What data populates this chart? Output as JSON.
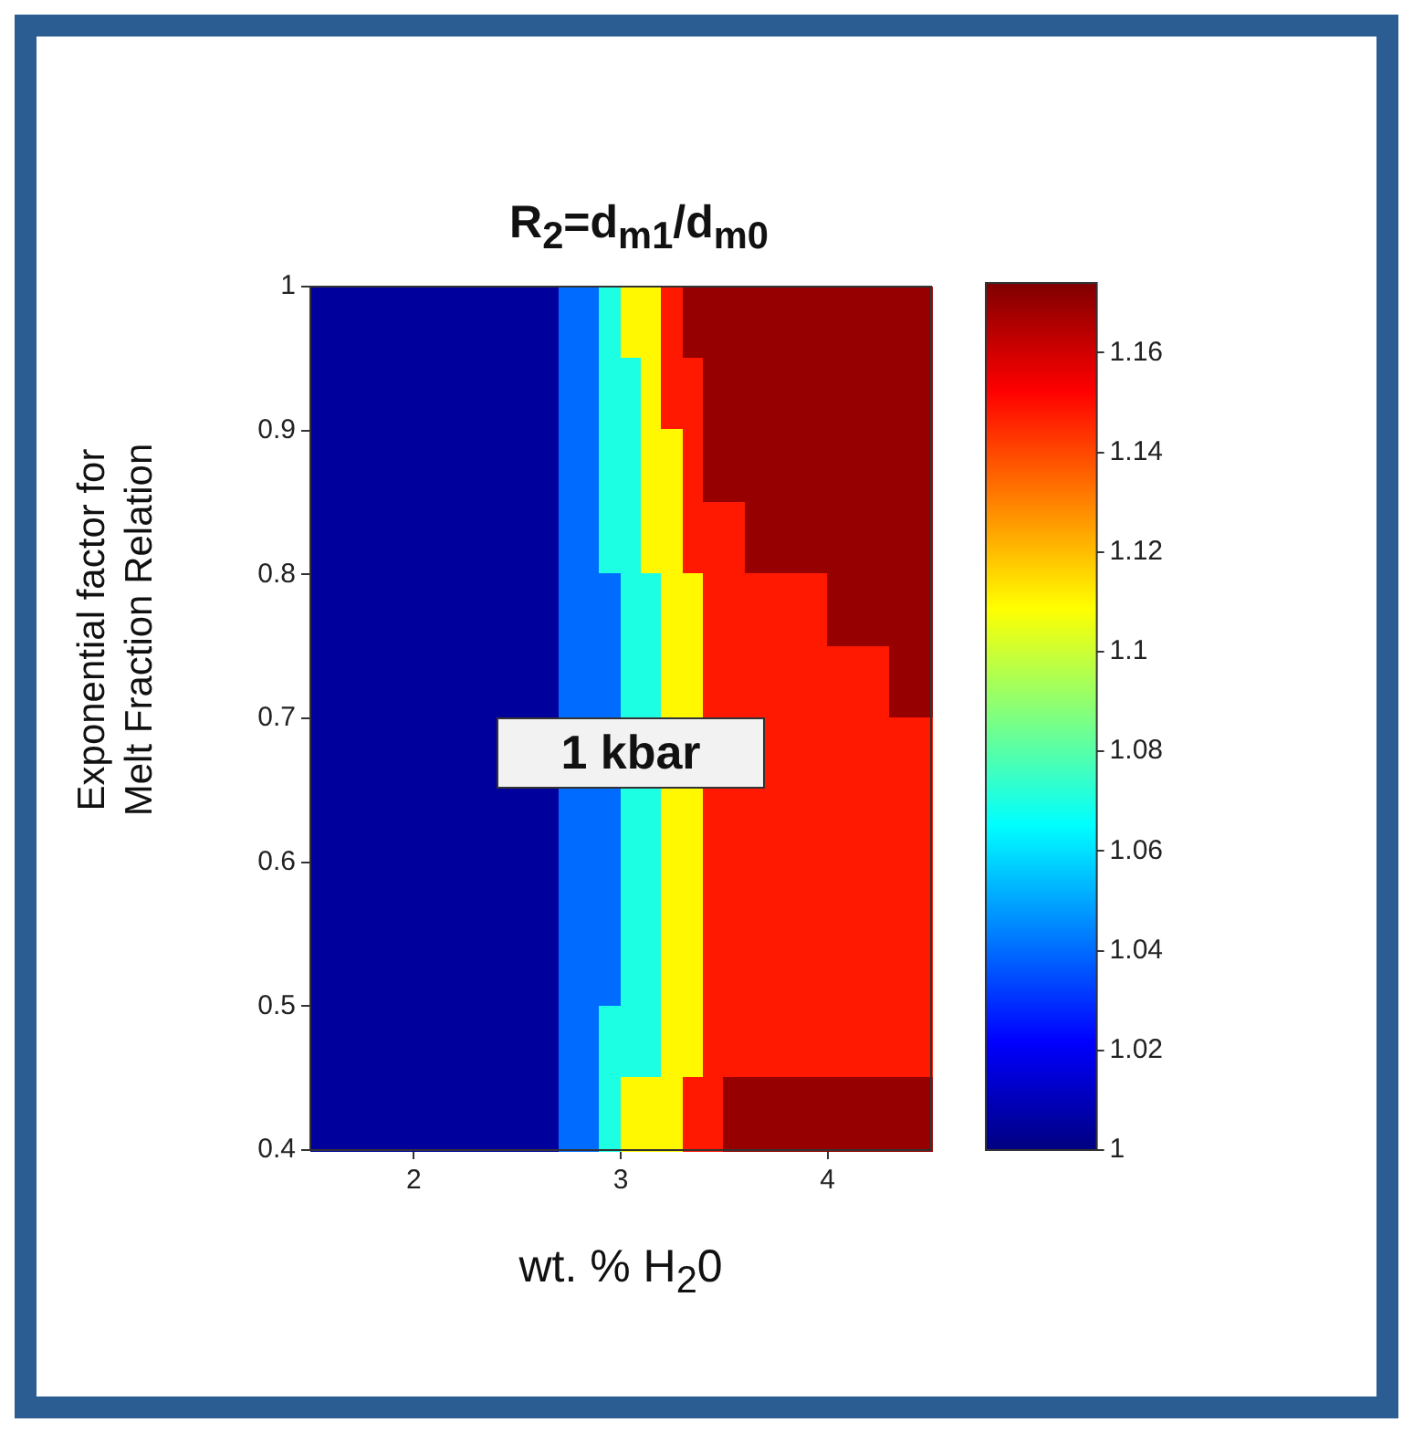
{
  "chart_data": {
    "type": "heatmap",
    "title": "R$_{2}$=d$_{m1}$/d$_{m0}$",
    "xlabel": "wt. % H$_{2}$0",
    "ylabel": "Exponential factor for Melt Fraction Relation",
    "annotations": [
      "1 kbar"
    ],
    "x": [
      1.55,
      1.65,
      1.75,
      1.85,
      1.95,
      2.05,
      2.15,
      2.25,
      2.35,
      2.45,
      2.55,
      2.65,
      2.75,
      2.85,
      2.95,
      3.05,
      3.15,
      3.25,
      3.35,
      3.45,
      3.55,
      3.65,
      3.75,
      3.85,
      3.95,
      4.05,
      4.15,
      4.25,
      4.35,
      4.45
    ],
    "xlim": [
      1.5,
      4.5
    ],
    "xticks": [
      2,
      3,
      4
    ],
    "ylim": [
      0.4,
      1
    ],
    "yticks": [
      0.4,
      0.5,
      0.6,
      0.7,
      0.8,
      0.9,
      1
    ],
    "clim": [
      1,
      1.174
    ],
    "cticks": [
      1,
      1.02,
      1.04,
      1.06,
      1.08,
      1.1,
      1.12,
      1.14,
      1.16
    ],
    "cells": [
      [
        1.005,
        1.005,
        1.005,
        1.005,
        1.005,
        1.005,
        1.005,
        1.005,
        1.005,
        1.005,
        1.005,
        1.005,
        1.04,
        1.04,
        1.07,
        1.11,
        1.11,
        1.148,
        1.17,
        1.17,
        1.17,
        1.17,
        1.17,
        1.17,
        1.17,
        1.17,
        1.17,
        1.17,
        1.17,
        1.17
      ],
      [
        1.005,
        1.005,
        1.005,
        1.005,
        1.005,
        1.005,
        1.005,
        1.005,
        1.005,
        1.005,
        1.005,
        1.005,
        1.04,
        1.04,
        1.07,
        1.07,
        1.11,
        1.148,
        1.148,
        1.17,
        1.17,
        1.17,
        1.17,
        1.17,
        1.17,
        1.17,
        1.17,
        1.17,
        1.17,
        1.17
      ],
      [
        1.005,
        1.005,
        1.005,
        1.005,
        1.005,
        1.005,
        1.005,
        1.005,
        1.005,
        1.005,
        1.005,
        1.005,
        1.04,
        1.04,
        1.07,
        1.07,
        1.11,
        1.11,
        1.148,
        1.17,
        1.17,
        1.17,
        1.17,
        1.17,
        1.17,
        1.17,
        1.17,
        1.17,
        1.17,
        1.17
      ],
      [
        1.005,
        1.005,
        1.005,
        1.005,
        1.005,
        1.005,
        1.005,
        1.005,
        1.005,
        1.005,
        1.005,
        1.005,
        1.04,
        1.04,
        1.07,
        1.07,
        1.11,
        1.11,
        1.148,
        1.148,
        1.148,
        1.17,
        1.17,
        1.17,
        1.17,
        1.17,
        1.17,
        1.17,
        1.17,
        1.17
      ],
      [
        1.005,
        1.005,
        1.005,
        1.005,
        1.005,
        1.005,
        1.005,
        1.005,
        1.005,
        1.005,
        1.005,
        1.005,
        1.04,
        1.04,
        1.04,
        1.07,
        1.07,
        1.11,
        1.11,
        1.148,
        1.148,
        1.148,
        1.148,
        1.148,
        1.148,
        1.17,
        1.17,
        1.17,
        1.17,
        1.17
      ],
      [
        1.005,
        1.005,
        1.005,
        1.005,
        1.005,
        1.005,
        1.005,
        1.005,
        1.005,
        1.005,
        1.005,
        1.005,
        1.04,
        1.04,
        1.04,
        1.07,
        1.07,
        1.11,
        1.11,
        1.148,
        1.148,
        1.148,
        1.148,
        1.148,
        1.148,
        1.148,
        1.148,
        1.148,
        1.17,
        1.17
      ],
      [
        1.005,
        1.005,
        1.005,
        1.005,
        1.005,
        1.005,
        1.005,
        1.005,
        1.005,
        null,
        null,
        null,
        null,
        null,
        null,
        null,
        null,
        null,
        null,
        null,
        null,
        null,
        1.148,
        1.148,
        1.148,
        1.148,
        1.148,
        1.148,
        1.148,
        1.148
      ],
      [
        1.005,
        1.005,
        1.005,
        1.005,
        1.005,
        1.005,
        1.005,
        1.005,
        1.005,
        1.005,
        1.005,
        1.005,
        1.04,
        1.04,
        1.04,
        1.07,
        1.07,
        1.11,
        1.11,
        1.148,
        1.148,
        1.148,
        1.148,
        1.148,
        1.148,
        1.148,
        1.148,
        1.148,
        1.148,
        1.148
      ],
      [
        1.005,
        1.005,
        1.005,
        1.005,
        1.005,
        1.005,
        1.005,
        1.005,
        1.005,
        1.005,
        1.005,
        1.005,
        1.04,
        1.04,
        1.04,
        1.07,
        1.07,
        1.11,
        1.11,
        1.148,
        1.148,
        1.148,
        1.148,
        1.148,
        1.148,
        1.148,
        1.148,
        1.148,
        1.148,
        1.148
      ],
      [
        1.005,
        1.005,
        1.005,
        1.005,
        1.005,
        1.005,
        1.005,
        1.005,
        1.005,
        1.005,
        1.005,
        1.005,
        1.04,
        1.04,
        1.04,
        1.07,
        1.07,
        1.11,
        1.11,
        1.148,
        1.148,
        1.148,
        1.148,
        1.148,
        1.148,
        1.148,
        1.148,
        1.148,
        1.148,
        1.148
      ],
      [
        1.005,
        1.005,
        1.005,
        1.005,
        1.005,
        1.005,
        1.005,
        1.005,
        1.005,
        1.005,
        1.005,
        1.005,
        1.04,
        1.04,
        1.07,
        1.07,
        1.07,
        1.11,
        1.11,
        1.148,
        1.148,
        1.148,
        1.148,
        1.148,
        1.148,
        1.148,
        1.148,
        1.148,
        1.148,
        1.148
      ],
      [
        1.005,
        1.005,
        1.005,
        1.005,
        1.005,
        1.005,
        1.005,
        1.005,
        1.005,
        1.005,
        1.005,
        1.005,
        1.04,
        1.04,
        1.07,
        1.11,
        1.11,
        1.11,
        1.148,
        1.148,
        1.17,
        1.17,
        1.17,
        1.17,
        1.17,
        1.17,
        1.17,
        1.17,
        1.17,
        1.17
      ]
    ]
  }
}
